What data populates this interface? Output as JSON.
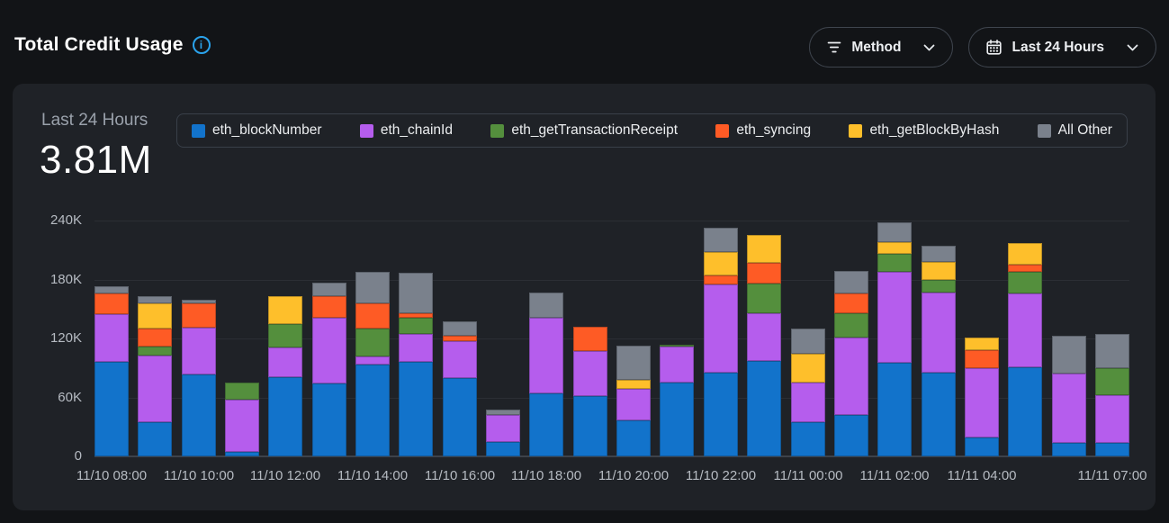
{
  "header": {
    "title": "Total Credit Usage",
    "icons": {
      "info": "info-icon",
      "method": "filter-icon",
      "time_range": "calendar-icon",
      "dropdown": "chevron-down-icon"
    },
    "filters": {
      "method_label": "Method",
      "time_range_label": "Last 24 Hours"
    }
  },
  "panel": {
    "range_label": "Last 24 Hours",
    "total_value": "3.81M"
  },
  "colors": {
    "background": "#121417",
    "panel": "#1f2227",
    "accent_info": "#2aa3ec",
    "grid": "#2b2e34",
    "axis_line": "#3d424a",
    "text_primary": "#ffffff",
    "text_secondary": "#9aa1ab",
    "text_axis": "#b6bbc2"
  },
  "chart_data": {
    "type": "bar",
    "stacked": true,
    "title": "Total Credit Usage",
    "subtitle": "Last 24 Hours",
    "total": "3.81M",
    "xlabel": "",
    "ylabel": "",
    "ylim": [
      0,
      240000
    ],
    "grid": true,
    "legend_position": "top",
    "yticks": [
      {
        "label": "0",
        "value": 0
      },
      {
        "label": "60K",
        "value": 60000
      },
      {
        "label": "120K",
        "value": 120000
      },
      {
        "label": "180K",
        "value": 180000
      },
      {
        "label": "240K",
        "value": 240000
      }
    ],
    "x": [
      "11/10 08:00",
      "11/10 09:00",
      "11/10 10:00",
      "11/10 11:00",
      "11/10 12:00",
      "11/10 13:00",
      "11/10 14:00",
      "11/10 15:00",
      "11/10 16:00",
      "11/10 17:00",
      "11/10 18:00",
      "11/10 19:00",
      "11/10 20:00",
      "11/10 21:00",
      "11/10 22:00",
      "11/10 23:00",
      "11/11 00:00",
      "11/11 01:00",
      "11/11 02:00",
      "11/11 03:00",
      "11/11 04:00",
      "11/11 05:00",
      "11/11 06:00",
      "11/11 07:00"
    ],
    "x_tick_labels": [
      {
        "index": 0,
        "label": "11/10 08:00"
      },
      {
        "index": 2,
        "label": "11/10 10:00"
      },
      {
        "index": 4,
        "label": "11/10 12:00"
      },
      {
        "index": 6,
        "label": "11/10 14:00"
      },
      {
        "index": 8,
        "label": "11/10 16:00"
      },
      {
        "index": 10,
        "label": "11/10 18:00"
      },
      {
        "index": 12,
        "label": "11/10 20:00"
      },
      {
        "index": 14,
        "label": "11/10 22:00"
      },
      {
        "index": 16,
        "label": "11/11 00:00"
      },
      {
        "index": 18,
        "label": "11/11 02:00"
      },
      {
        "index": 20,
        "label": "11/11 04:00"
      },
      {
        "index": 23,
        "label": "11/11 07:00"
      }
    ],
    "series": [
      {
        "name": "eth_blockNumber",
        "color": "#1273cb",
        "values": [
          96000,
          35000,
          83000,
          5000,
          81000,
          74000,
          93000,
          96000,
          80000,
          15000,
          64000,
          61000,
          37000,
          75000,
          85000,
          97000,
          35000,
          42000,
          95000,
          85000,
          19000,
          91000,
          14000,
          14000
        ]
      },
      {
        "name": "eth_chainId",
        "color": "#b55ded",
        "values": [
          49000,
          68000,
          48000,
          53000,
          30000,
          67000,
          9000,
          29000,
          37000,
          27000,
          77000,
          46000,
          32000,
          37000,
          90000,
          49000,
          40000,
          79000,
          93000,
          82000,
          71000,
          75000,
          70000,
          48000
        ]
      },
      {
        "name": "eth_getTransactionReceipt",
        "color": "#548f3d",
        "values": [
          0,
          9000,
          0,
          17000,
          24000,
          0,
          28000,
          16000,
          0,
          0,
          0,
          0,
          0,
          2000,
          0,
          30000,
          0,
          25000,
          18000,
          13000,
          0,
          22000,
          0,
          28000
        ]
      },
      {
        "name": "eth_syncing",
        "color": "#fe5b25",
        "values": [
          21000,
          18000,
          25000,
          0,
          0,
          22000,
          26000,
          5000,
          6000,
          0,
          0,
          25000,
          0,
          0,
          9000,
          21000,
          0,
          20000,
          0,
          0,
          18000,
          7000,
          0,
          0
        ]
      },
      {
        "name": "eth_getBlockByHash",
        "color": "#febf2b",
        "values": [
          0,
          26000,
          0,
          0,
          28000,
          0,
          0,
          0,
          0,
          0,
          0,
          0,
          9000,
          0,
          24000,
          28000,
          29000,
          0,
          12000,
          18000,
          13000,
          22000,
          0,
          0
        ]
      },
      {
        "name": "All Other",
        "color": "#7a818c",
        "values": [
          7000,
          7000,
          3000,
          0,
          0,
          14000,
          32000,
          41000,
          14000,
          6000,
          26000,
          0,
          35000,
          0,
          25000,
          0,
          26000,
          23000,
          20000,
          16000,
          0,
          0,
          39000,
          35000
        ]
      }
    ]
  }
}
